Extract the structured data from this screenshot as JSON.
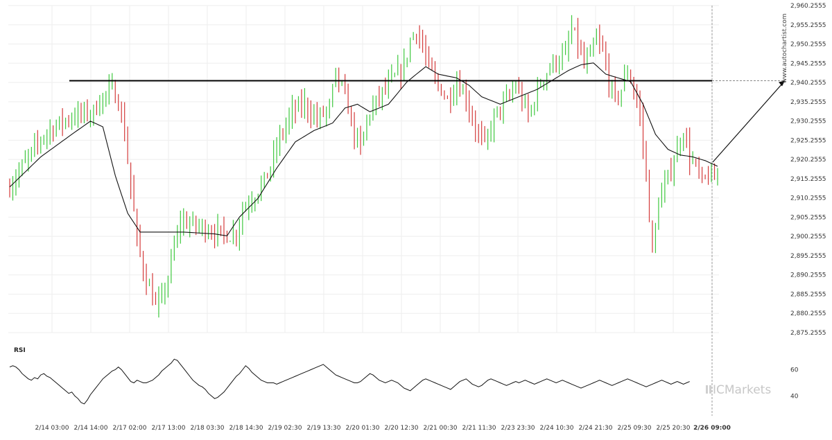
{
  "watermark": {
    "site": "www.autochartist.com",
    "brand": "ICMarkets"
  },
  "colors": {
    "up": "#3ec83e",
    "down": "#d43a3a",
    "ma": "#111111",
    "level": "#000000",
    "grid": "#eeeeee",
    "rsi": "#111111"
  },
  "chart_data": {
    "type": "candlestick",
    "ylim": [
      2873.2555,
      2960.2555
    ],
    "y_ticks": [
      "2,960.2555",
      "2,955.2555",
      "2,950.2555",
      "2,945.2555",
      "2,940.2555",
      "2,935.2555",
      "2,930.2555",
      "2,925.2555",
      "2,920.2555",
      "2,915.2555",
      "2,910.2555",
      "2,905.2555",
      "2,900.2555",
      "2,895.2555",
      "2,890.2555",
      "2,885.2555",
      "2,880.2555",
      "2,875.2555"
    ],
    "x_ticks": [
      "2/14 03:00",
      "2/14 14:00",
      "2/17 02:00",
      "2/17 13:00",
      "2/18 03:30",
      "2/18 14:30",
      "2/19 02:30",
      "2/19 13:30",
      "2/20 01:30",
      "2/20 12:30",
      "2/21 00:30",
      "2/21 11:30",
      "2/23 23:30",
      "2/24 10:30",
      "2/24 21:30",
      "2/25 09:30",
      "2/25 20:30",
      "2/26 09:00"
    ],
    "highlighted_x_tick": "2/26 09:00",
    "resistance_level": 2940.2555,
    "forecast_target": 2940.2555,
    "price_path_anchors": [
      [
        0,
        2911
      ],
      [
        4,
        2916
      ],
      [
        8,
        2921
      ],
      [
        12,
        2926
      ],
      [
        17,
        2929
      ],
      [
        22,
        2931
      ],
      [
        28,
        2932
      ],
      [
        31,
        2936
      ],
      [
        34,
        2938
      ],
      [
        36,
        2935
      ],
      [
        38,
        2926
      ],
      [
        40,
        2912
      ],
      [
        42,
        2898
      ],
      [
        44,
        2890
      ],
      [
        46,
        2885
      ],
      [
        48,
        2880
      ],
      [
        50,
        2882
      ],
      [
        52,
        2888
      ],
      [
        54,
        2896
      ],
      [
        56,
        2903
      ],
      [
        60,
        2902
      ],
      [
        64,
        2901
      ],
      [
        68,
        2900
      ],
      [
        72,
        2899
      ],
      [
        74,
        2900
      ],
      [
        76,
        2906
      ],
      [
        80,
        2910
      ],
      [
        84,
        2915
      ],
      [
        88,
        2925
      ],
      [
        92,
        2932
      ],
      [
        96,
        2934
      ],
      [
        100,
        2930
      ],
      [
        104,
        2933
      ],
      [
        106,
        2942
      ],
      [
        108,
        2938
      ],
      [
        110,
        2933
      ],
      [
        112,
        2926
      ],
      [
        114,
        2922
      ],
      [
        116,
        2930
      ],
      [
        120,
        2936
      ],
      [
        124,
        2940
      ],
      [
        128,
        2944
      ],
      [
        130,
        2951
      ],
      [
        132,
        2954
      ],
      [
        134,
        2949
      ],
      [
        136,
        2944
      ],
      [
        138,
        2940
      ],
      [
        140,
        2938
      ],
      [
        142,
        2935
      ],
      [
        145,
        2940
      ],
      [
        148,
        2936
      ],
      [
        150,
        2930
      ],
      [
        152,
        2926
      ],
      [
        154,
        2923
      ],
      [
        156,
        2928
      ],
      [
        158,
        2932
      ],
      [
        160,
        2934
      ],
      [
        162,
        2936
      ],
      [
        164,
        2939
      ],
      [
        166,
        2935
      ],
      [
        168,
        2931
      ],
      [
        170,
        2935
      ],
      [
        172,
        2940
      ],
      [
        176,
        2945
      ],
      [
        180,
        2947
      ],
      [
        182,
        2954
      ],
      [
        184,
        2950
      ],
      [
        186,
        2944
      ],
      [
        188,
        2947
      ],
      [
        190,
        2951
      ],
      [
        192,
        2948
      ],
      [
        194,
        2940
      ],
      [
        196,
        2935
      ],
      [
        198,
        2938
      ],
      [
        200,
        2943
      ],
      [
        202,
        2938
      ],
      [
        204,
        2931
      ],
      [
        206,
        2915
      ],
      [
        208,
        2894
      ],
      [
        210,
        2908
      ],
      [
        212,
        2912
      ],
      [
        214,
        2917
      ],
      [
        216,
        2922
      ],
      [
        218,
        2927
      ],
      [
        220,
        2920
      ],
      [
        222,
        2917
      ],
      [
        224,
        2913
      ],
      [
        226,
        2915
      ],
      [
        228,
        2914
      ]
    ],
    "ma_anchors": [
      [
        0,
        2912
      ],
      [
        10,
        2920
      ],
      [
        20,
        2926
      ],
      [
        26,
        2929.5
      ],
      [
        30,
        2928
      ],
      [
        34,
        2915
      ],
      [
        38,
        2905
      ],
      [
        42,
        2900
      ],
      [
        46,
        2900
      ],
      [
        56,
        2900
      ],
      [
        66,
        2899.5
      ],
      [
        70,
        2899
      ],
      [
        74,
        2904
      ],
      [
        80,
        2909
      ],
      [
        86,
        2917
      ],
      [
        92,
        2924
      ],
      [
        98,
        2927
      ],
      [
        104,
        2929
      ],
      [
        108,
        2933
      ],
      [
        112,
        2934
      ],
      [
        116,
        2932
      ],
      [
        122,
        2934
      ],
      [
        128,
        2940
      ],
      [
        134,
        2944
      ],
      [
        138,
        2942
      ],
      [
        144,
        2941
      ],
      [
        148,
        2939
      ],
      [
        152,
        2936
      ],
      [
        158,
        2934
      ],
      [
        164,
        2936
      ],
      [
        170,
        2938
      ],
      [
        176,
        2941
      ],
      [
        180,
        2943
      ],
      [
        184,
        2944.5
      ],
      [
        188,
        2945
      ],
      [
        192,
        2942
      ],
      [
        196,
        2941
      ],
      [
        200,
        2940
      ],
      [
        204,
        2934
      ],
      [
        208,
        2926
      ],
      [
        212,
        2922
      ],
      [
        216,
        2920.5
      ],
      [
        220,
        2920
      ],
      [
        224,
        2919
      ],
      [
        228,
        2917.5
      ]
    ],
    "rsi": {
      "label": "RSI",
      "y_ticks": [
        60,
        40
      ],
      "ylim": [
        25,
        75
      ],
      "values": [
        62,
        63,
        62,
        60,
        57,
        55,
        53,
        52,
        54,
        53,
        56,
        57,
        55,
        54,
        52,
        50,
        48,
        46,
        44,
        42,
        43,
        40,
        38,
        35,
        34,
        37,
        41,
        44,
        47,
        50,
        53,
        55,
        57,
        59,
        60,
        62,
        60,
        57,
        54,
        51,
        50,
        52,
        51,
        50,
        50,
        51,
        52,
        54,
        56,
        59,
        61,
        63,
        65,
        68,
        67,
        64,
        61,
        58,
        55,
        52,
        50,
        48,
        47,
        45,
        42,
        40,
        38,
        39,
        41,
        43,
        46,
        49,
        52,
        55,
        57,
        60,
        63,
        61,
        58,
        56,
        54,
        52,
        51,
        50,
        50,
        50,
        49,
        50,
        51,
        52,
        53,
        54,
        55,
        56,
        57,
        58,
        59,
        60,
        61,
        62,
        63,
        64,
        62,
        60,
        58,
        56,
        55,
        54,
        53,
        52,
        51,
        50,
        50,
        51,
        53,
        55,
        57,
        56,
        54,
        52,
        51,
        50,
        51,
        52,
        51,
        50,
        48,
        46,
        45,
        44,
        46,
        48,
        50,
        52,
        53,
        52,
        51,
        50,
        49,
        48,
        47,
        46,
        45,
        47,
        49,
        51,
        52,
        53,
        51,
        49,
        48,
        47,
        48,
        50,
        52,
        53,
        52,
        51,
        50,
        49,
        48,
        49,
        50,
        51,
        50,
        51,
        52,
        51,
        50,
        49,
        50,
        51,
        52,
        53,
        52,
        51,
        50,
        51,
        52,
        51,
        50,
        49,
        48,
        47,
        46,
        47,
        48,
        49,
        50,
        51,
        52,
        51,
        50,
        49,
        48,
        49,
        50,
        51,
        52,
        53,
        52,
        51,
        50,
        49,
        48,
        47,
        48,
        49,
        50,
        51,
        52,
        51,
        50,
        49,
        50,
        51,
        50,
        49,
        50,
        51
      ]
    }
  }
}
